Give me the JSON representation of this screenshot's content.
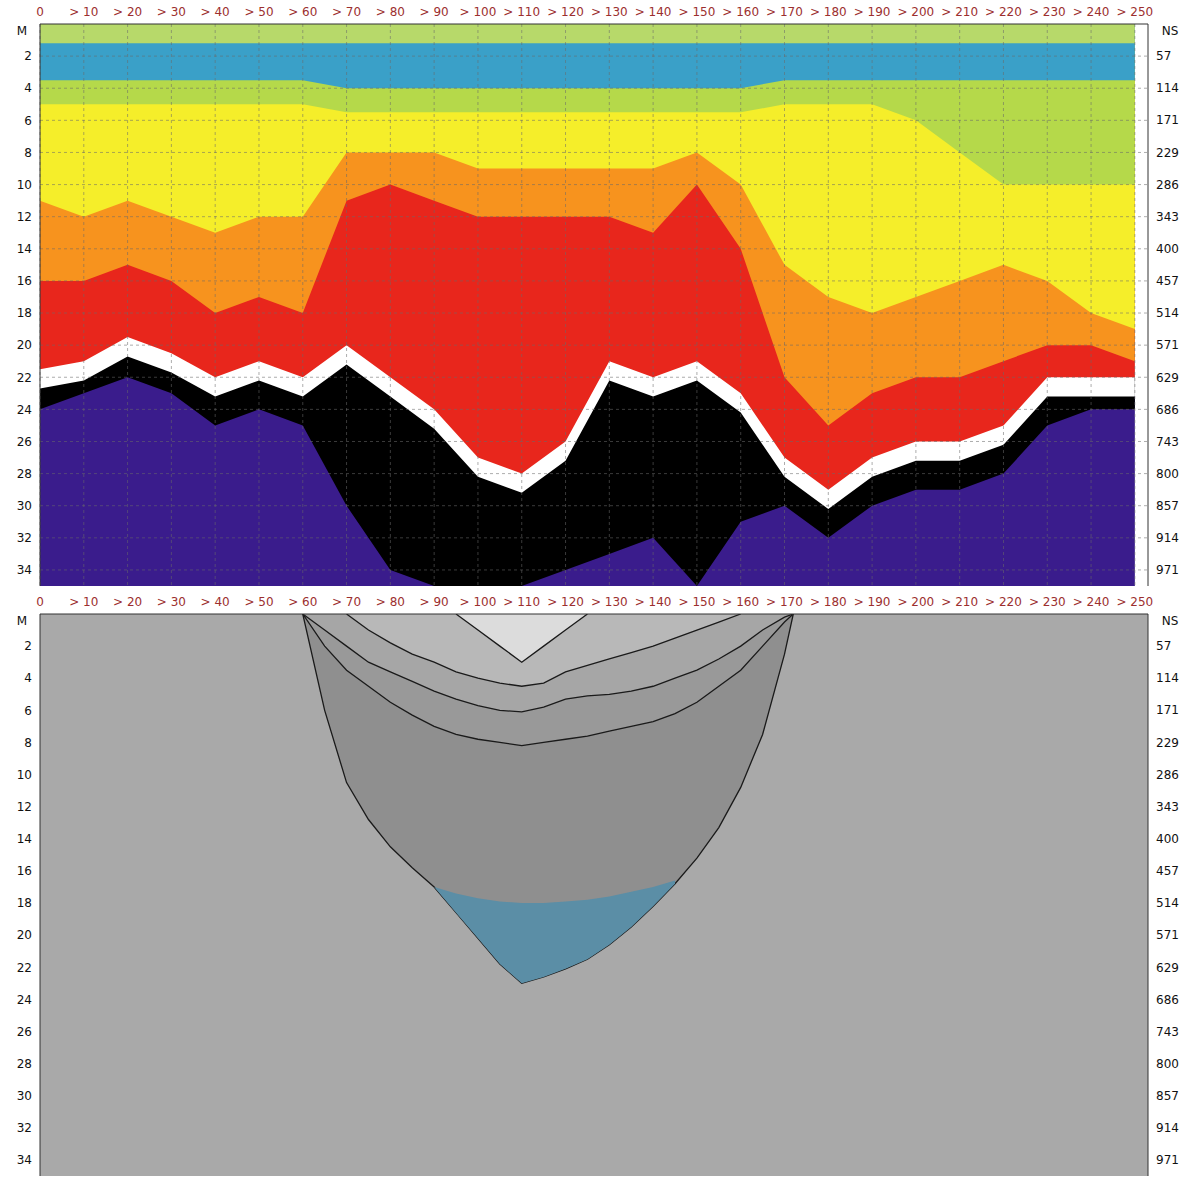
{
  "chart_data": [
    {
      "type": "area",
      "grid": true,
      "x_label": "M",
      "y2_label": "NS",
      "x": [
        0,
        10,
        20,
        30,
        40,
        50,
        60,
        70,
        80,
        90,
        100,
        110,
        120,
        130,
        140,
        150,
        160,
        170,
        180,
        190,
        200,
        210,
        220,
        230,
        240,
        250
      ],
      "xlim": [
        0,
        253
      ],
      "xticks": [
        0,
        {
          "value": 10,
          "label": "> 10"
        },
        {
          "value": 20,
          "label": "> 20"
        },
        {
          "value": 30,
          "label": "> 30"
        },
        {
          "value": 40,
          "label": "> 40"
        },
        {
          "value": 50,
          "label": "> 50"
        },
        {
          "value": 60,
          "label": "> 60"
        },
        {
          "value": 70,
          "label": "> 70"
        },
        {
          "value": 80,
          "label": "> 80"
        },
        {
          "value": 90,
          "label": "> 90"
        },
        {
          "value": 100,
          "label": "> 100"
        },
        {
          "value": 110,
          "label": "> 110"
        },
        {
          "value": 120,
          "label": "> 120"
        },
        {
          "value": 130,
          "label": "> 130"
        },
        {
          "value": 140,
          "label": "> 140"
        },
        {
          "value": 150,
          "label": "> 150"
        },
        {
          "value": 160,
          "label": "> 160"
        },
        {
          "value": 170,
          "label": "> 170"
        },
        {
          "value": 180,
          "label": "> 180"
        },
        {
          "value": 190,
          "label": "> 190"
        },
        {
          "value": 200,
          "label": "> 200"
        },
        {
          "value": 210,
          "label": "> 210"
        },
        {
          "value": 220,
          "label": "> 220"
        },
        {
          "value": 230,
          "label": "> 230"
        },
        {
          "value": 240,
          "label": "> 240"
        },
        {
          "value": 250,
          "label": "> 250"
        }
      ],
      "ylim": [
        0,
        35
      ],
      "yticks": [
        2,
        4,
        6,
        8,
        10,
        12,
        14,
        16,
        18,
        20,
        22,
        24,
        26,
        28,
        30,
        32,
        34
      ],
      "y2lim": [
        0,
        1000
      ],
      "y2ticks": [
        57,
        114,
        171,
        229,
        286,
        343,
        400,
        457,
        514,
        571,
        629,
        686,
        743,
        800,
        857,
        914,
        971
      ],
      "series": [
        {
          "color": "#3a1c8c",
          "line_style": "none",
          "values": [
            35,
            35,
            35,
            35,
            35,
            35,
            35,
            35,
            35,
            35,
            35,
            35,
            35,
            35,
            35,
            35,
            35,
            35,
            35,
            35,
            35,
            35,
            35,
            35,
            35,
            35
          ]
        },
        {
          "color": "#000000",
          "line_style": "none",
          "values": [
            24,
            23,
            22,
            23,
            25,
            24,
            25,
            30,
            34,
            35,
            35,
            35,
            34,
            33,
            32,
            35,
            31,
            30,
            32,
            30,
            29,
            29,
            28,
            25,
            24,
            24
          ]
        },
        {
          "color": "#ffffff",
          "line_style": "none",
          "values": [
            22.7,
            22.2,
            20.7,
            21.7,
            23.2,
            22.2,
            23.2,
            21.2,
            23.2,
            25.2,
            28.2,
            29.2,
            27.2,
            22.2,
            23.2,
            22.2,
            24.2,
            28.2,
            30.2,
            28.2,
            27.2,
            27.2,
            26.2,
            23.2,
            23.2,
            23.2
          ]
        },
        {
          "color": "#e8261c",
          "line_style": "none",
          "values": [
            21.5,
            21,
            19.5,
            20.5,
            22,
            21,
            22,
            20,
            22,
            24,
            27,
            28,
            26,
            21,
            22,
            21,
            23,
            27,
            29,
            27,
            26,
            26,
            25,
            22,
            22,
            22
          ]
        },
        {
          "color": "#f7931e",
          "line_style": "none",
          "values": [
            16,
            16,
            15,
            16,
            18,
            17,
            18,
            11,
            10,
            11,
            12,
            12,
            12,
            12,
            13,
            10,
            14,
            22,
            25,
            23,
            22,
            22,
            21,
            20,
            20,
            21
          ]
        },
        {
          "color": "#f5ee2a",
          "line_style": "none",
          "values": [
            11,
            12,
            11,
            12,
            13,
            12,
            12,
            8,
            8,
            8,
            9,
            9,
            9,
            9,
            9,
            8,
            10,
            15,
            17,
            18,
            17,
            16,
            15,
            16,
            18,
            19
          ]
        },
        {
          "color": "#b5d94a",
          "line_style": "none",
          "values": [
            5,
            5,
            5,
            5,
            5,
            5,
            5,
            5.5,
            5.5,
            5.5,
            5.5,
            5.5,
            5.5,
            5.5,
            5.5,
            5.5,
            5.5,
            5,
            5,
            5,
            6,
            8,
            10,
            10,
            10,
            10
          ]
        },
        {
          "color": "#3aa0c8",
          "line_style": "none",
          "values": [
            3.5,
            3.5,
            3.5,
            3.5,
            3.5,
            3.5,
            3.5,
            4,
            4,
            4,
            4,
            4,
            4,
            4,
            4,
            4,
            4,
            3.5,
            3.5,
            3.5,
            3.5,
            3.5,
            3.5,
            3.5,
            3.5,
            3.5
          ]
        },
        {
          "color": "#b7d96a",
          "line_style": "none",
          "values": [
            1.2,
            1.2,
            1.2,
            1.2,
            1.2,
            1.2,
            1.2,
            1.2,
            1.2,
            1.2,
            1.2,
            1.2,
            1.2,
            1.2,
            1.2,
            1.2,
            1.2,
            1.2,
            1.2,
            1.2,
            1.2,
            1.2,
            1.2,
            1.2,
            1.2,
            1.2
          ]
        }
      ]
    },
    {
      "type": "area",
      "grid": false,
      "color": "#a9a9a9",
      "x_label": "M",
      "y2_label": "NS",
      "x": [
        60,
        65,
        70,
        75,
        80,
        85,
        90,
        95,
        100,
        105,
        110,
        115,
        120,
        125,
        130,
        135,
        140,
        145,
        150,
        155,
        160,
        165,
        170,
        172
      ],
      "xlim": [
        0,
        253
      ],
      "xticks": [
        0,
        {
          "value": 10,
          "label": "> 10"
        },
        {
          "value": 20,
          "label": "> 20"
        },
        {
          "value": 30,
          "label": "> 30"
        },
        {
          "value": 40,
          "label": "> 40"
        },
        {
          "value": 50,
          "label": "> 50"
        },
        {
          "value": 60,
          "label": "> 60"
        },
        {
          "value": 70,
          "label": "> 70"
        },
        {
          "value": 80,
          "label": "> 80"
        },
        {
          "value": 90,
          "label": "> 90"
        },
        {
          "value": 100,
          "label": "> 100"
        },
        {
          "value": 110,
          "label": "> 110"
        },
        {
          "value": 120,
          "label": "> 120"
        },
        {
          "value": 130,
          "label": "> 130"
        },
        {
          "value": 140,
          "label": "> 140"
        },
        {
          "value": 150,
          "label": "> 150"
        },
        {
          "value": 160,
          "label": "> 160"
        },
        {
          "value": 170,
          "label": "> 170"
        },
        {
          "value": 180,
          "label": "> 180"
        },
        {
          "value": 190,
          "label": "> 190"
        },
        {
          "value": 200,
          "label": "> 200"
        },
        {
          "value": 210,
          "label": "> 210"
        },
        {
          "value": 220,
          "label": "> 220"
        },
        {
          "value": 230,
          "label": "> 230"
        },
        {
          "value": 240,
          "label": "> 240"
        },
        {
          "value": 250,
          "label": "> 250"
        }
      ],
      "ylim": [
        0,
        35
      ],
      "yticks": [
        2,
        4,
        6,
        8,
        10,
        12,
        14,
        16,
        18,
        20,
        22,
        24,
        26,
        28,
        30,
        32,
        34
      ],
      "y2lim": [
        0,
        1000
      ],
      "y2ticks": [
        57,
        114,
        171,
        229,
        286,
        343,
        400,
        457,
        514,
        571,
        629,
        686,
        743,
        800,
        857,
        914,
        971
      ],
      "series": [
        {
          "color": "#8f8f8f",
          "line_style": "solid",
          "values": [
            0,
            6,
            10.5,
            12.8,
            14.5,
            15.8,
            17,
            18.6,
            20.2,
            21.8,
            23,
            22.6,
            22.1,
            21.5,
            20.6,
            19.5,
            18.2,
            16.8,
            15.2,
            13.3,
            10.8,
            7.5,
            2.5,
            0
          ]
        },
        {
          "color": "#5b8ea6",
          "line_style": "none",
          "values": [
            null,
            null,
            null,
            null,
            null,
            null,
            [
              17,
              17
            ],
            [
              17.4,
              18.6
            ],
            [
              17.7,
              20.2
            ],
            [
              17.9,
              21.8
            ],
            [
              18,
              23
            ],
            [
              18,
              22.6
            ],
            [
              17.9,
              22.1
            ],
            [
              17.8,
              21.5
            ],
            [
              17.6,
              20.6
            ],
            [
              17.3,
              19.5
            ],
            [
              17,
              18.2
            ],
            [
              16.6,
              16.8
            ],
            null,
            null,
            null,
            null,
            null,
            null
          ]
        },
        {
          "color": "#999999",
          "line_style": "solid",
          "values": [
            0,
            2,
            3.5,
            4.5,
            5.5,
            6.3,
            7,
            7.5,
            7.8,
            8,
            8.2,
            8,
            7.8,
            7.6,
            7.3,
            7,
            6.7,
            6.2,
            5.5,
            4.5,
            3.5,
            2,
            0.5,
            0
          ]
        },
        {
          "color": "#a6a6a6",
          "line_style": "solid",
          "values": [
            0,
            1,
            2,
            3,
            3.6,
            4.2,
            4.8,
            5.3,
            5.7,
            6,
            6.1,
            5.8,
            5.3,
            5.1,
            5,
            4.8,
            4.5,
            4,
            3.5,
            2.8,
            2,
            1,
            0.2,
            0
          ]
        },
        {
          "color": "#b8b8b8",
          "line_style": "solid",
          "values": [
            null,
            null,
            0,
            1,
            1.8,
            2.5,
            3,
            3.6,
            4,
            4.3,
            4.5,
            4.3,
            3.6,
            3.2,
            2.8,
            2.4,
            2,
            1.5,
            1,
            0.5,
            0,
            null,
            null,
            null
          ]
        },
        {
          "color": "#dcdcdc",
          "line_style": "solid",
          "values": [
            null,
            null,
            null,
            null,
            null,
            null,
            null,
            0,
            1,
            2,
            3,
            2,
            1,
            0,
            null,
            null,
            null,
            null,
            null,
            null,
            null,
            null,
            null,
            null
          ]
        }
      ]
    }
  ]
}
